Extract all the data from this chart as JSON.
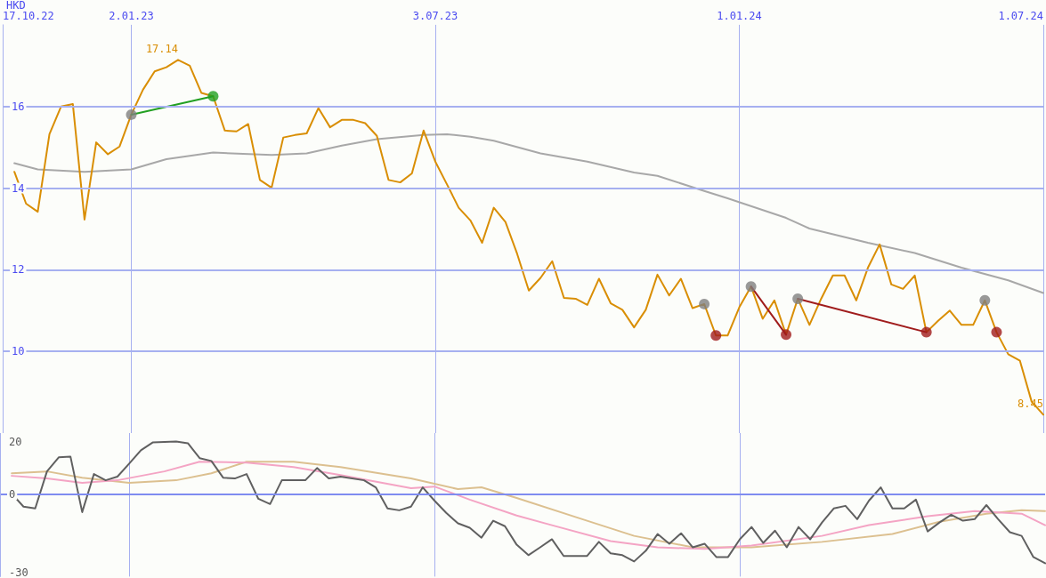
{
  "chart_data": [
    {
      "type": "line",
      "ylabel": "HKD",
      "marker": "none",
      "grid": true,
      "x": [
        "2022-10-24",
        "2022-10-31",
        "2022-11-07",
        "2022-11-14",
        "2022-11-21",
        "2022-11-28",
        "2022-12-05",
        "2022-12-12",
        "2022-12-19",
        "2022-12-26",
        "2023-01-02",
        "2023-01-09",
        "2023-01-16",
        "2023-01-23",
        "2023-01-30",
        "2023-02-06",
        "2023-02-13",
        "2023-02-20",
        "2023-02-27",
        "2023-03-06",
        "2023-03-13",
        "2023-03-20",
        "2023-03-27",
        "2023-04-03",
        "2023-04-10",
        "2023-04-17",
        "2023-04-24",
        "2023-05-01",
        "2023-05-08",
        "2023-05-15",
        "2023-05-22",
        "2023-05-29",
        "2023-06-05",
        "2023-06-12",
        "2023-06-19",
        "2023-06-26",
        "2023-07-03",
        "2023-07-10",
        "2023-07-17",
        "2023-07-24",
        "2023-07-31",
        "2023-08-07",
        "2023-08-14",
        "2023-08-21",
        "2023-08-28",
        "2023-09-04",
        "2023-09-11",
        "2023-09-18",
        "2023-09-25",
        "2023-10-02",
        "2023-10-09",
        "2023-10-16",
        "2023-10-23",
        "2023-10-30",
        "2023-11-06",
        "2023-11-13",
        "2023-11-20",
        "2023-11-27",
        "2023-12-04",
        "2023-12-11",
        "2023-12-18",
        "2023-12-25",
        "2024-01-01",
        "2024-01-08",
        "2024-01-15",
        "2024-01-22",
        "2024-01-29",
        "2024-02-05",
        "2024-02-12",
        "2024-02-19",
        "2024-02-26",
        "2024-03-04",
        "2024-03-11",
        "2024-03-18",
        "2024-03-25",
        "2024-04-01",
        "2024-04-08",
        "2024-04-15",
        "2024-04-22",
        "2024-04-29",
        "2024-05-06",
        "2024-05-13",
        "2024-05-20",
        "2024-05-27",
        "2024-06-03",
        "2024-06-10",
        "2024-06-17",
        "2024-06-24",
        "2024-07-01"
      ],
      "xlim": [
        "2022-10-17",
        "2024-07-01"
      ],
      "xticks": [
        {
          "value": "2022-10-17",
          "label": "17.10.22"
        },
        {
          "value": "2023-01-02",
          "label": "2.01.23"
        },
        {
          "value": "2023-07-03",
          "label": "3.07.23"
        },
        {
          "value": "2024-01-01",
          "label": "1.01.24"
        },
        {
          "value": "2024-07-01",
          "label": "1.07.24"
        }
      ],
      "ylim": [
        8,
        18
      ],
      "yticks": [
        10,
        12,
        14,
        16
      ],
      "series": [
        {
          "color": "#a8a8a8",
          "x": [
            "2022-10-24",
            "2022-11-07",
            "2022-12-05",
            "2023-01-02",
            "2023-01-23",
            "2023-02-20",
            "2023-03-27",
            "2023-04-17",
            "2023-05-08",
            "2023-05-29",
            "2023-06-26",
            "2023-07-10",
            "2023-07-24",
            "2023-08-07",
            "2023-09-04",
            "2023-10-02",
            "2023-10-30",
            "2023-11-13",
            "2023-12-11",
            "2023-12-25",
            "2024-01-29",
            "2024-02-12",
            "2024-03-18",
            "2024-04-15",
            "2024-05-13",
            "2024-06-10",
            "2024-07-01"
          ],
          "values": [
            14.61,
            14.46,
            14.4,
            14.46,
            14.71,
            14.87,
            14.81,
            14.85,
            15.04,
            15.2,
            15.3,
            15.32,
            15.26,
            15.16,
            14.85,
            14.65,
            14.38,
            14.3,
            13.93,
            13.75,
            13.27,
            13.01,
            12.66,
            12.41,
            12.05,
            11.74,
            11.43
          ]
        },
        {
          "color": "#d98e04",
          "values": [
            14.4,
            13.62,
            13.42,
            15.32,
            16.0,
            16.06,
            13.23,
            15.12,
            14.83,
            15.02,
            15.8,
            16.41,
            16.86,
            16.96,
            17.14,
            17.0,
            16.33,
            16.25,
            15.41,
            15.39,
            15.57,
            14.2,
            14.01,
            15.24,
            15.3,
            15.34,
            15.96,
            15.49,
            15.67,
            15.67,
            15.59,
            15.28,
            14.2,
            14.14,
            14.36,
            15.41,
            14.65,
            14.09,
            13.52,
            13.21,
            12.66,
            13.52,
            13.17,
            12.39,
            11.49,
            11.8,
            12.21,
            11.31,
            11.29,
            11.14,
            11.78,
            11.18,
            11.02,
            10.59,
            11.02,
            11.88,
            11.37,
            11.78,
            11.06,
            11.16,
            10.39,
            10.39,
            11.08,
            11.59,
            10.8,
            11.25,
            10.41,
            11.29,
            10.65,
            11.29,
            11.86,
            11.86,
            11.25,
            12.05,
            12.62,
            11.64,
            11.53,
            11.86,
            10.47,
            10.75,
            11.0,
            10.65,
            10.65,
            11.25,
            10.47,
            9.93,
            9.77,
            8.77,
            8.45
          ],
          "value_labels": [
            null,
            null,
            null,
            null,
            null,
            null,
            null,
            null,
            null,
            null,
            null,
            null,
            null,
            null,
            "17.14",
            null,
            null,
            null,
            null,
            null,
            null,
            null,
            null,
            null,
            null,
            null,
            null,
            null,
            null,
            null,
            null,
            null,
            null,
            null,
            null,
            null,
            null,
            null,
            null,
            null,
            null,
            null,
            null,
            null,
            null,
            null,
            null,
            null,
            null,
            null,
            null,
            null,
            null,
            null,
            null,
            null,
            null,
            null,
            null,
            null,
            null,
            null,
            null,
            null,
            null,
            null,
            null,
            null,
            null,
            null,
            null,
            null,
            null,
            null,
            null,
            null,
            null,
            null,
            null,
            null,
            null,
            null,
            null,
            null,
            null,
            null,
            null,
            null,
            "8.45"
          ]
        },
        {
          "color": "#22a022",
          "x": [
            "2023-01-02",
            "2023-02-20"
          ],
          "values": [
            15.8,
            16.25
          ]
        },
        {
          "color": "#a01c1c",
          "x": [
            "2024-01-08",
            "2024-01-29"
          ],
          "values": [
            11.59,
            10.41
          ]
        },
        {
          "color": "#a01c1c",
          "x": [
            "2024-02-05",
            "2024-04-22"
          ],
          "values": [
            11.29,
            10.47
          ]
        },
        {
          "type": "scatter",
          "marker": "circle",
          "color": "#808080",
          "x": [
            "2023-01-02",
            "2023-12-11",
            "2024-01-08",
            "2024-02-05",
            "2024-05-27"
          ],
          "values": [
            15.8,
            11.16,
            11.59,
            11.29,
            11.25
          ]
        },
        {
          "type": "scatter",
          "marker": "circle",
          "color": "#a01c1c",
          "x": [
            "2023-12-18",
            "2024-01-29",
            "2024-04-22",
            "2024-06-03"
          ],
          "values": [
            10.39,
            10.41,
            10.47,
            10.47
          ]
        },
        {
          "type": "scatter",
          "marker": "circle",
          "color": "#22a022",
          "x": [
            "2023-02-20"
          ],
          "values": [
            16.25
          ]
        }
      ]
    },
    {
      "type": "line",
      "marker": "none",
      "grid": "x",
      "tick_labels": "y",
      "x": [
        "2022-10-24",
        "2022-10-31",
        "2022-11-07",
        "2022-11-14",
        "2022-11-21",
        "2022-11-28",
        "2022-12-05",
        "2022-12-12",
        "2022-12-19",
        "2022-12-26",
        "2023-01-02",
        "2023-01-09",
        "2023-01-16",
        "2023-01-30",
        "2023-02-06",
        "2023-02-13",
        "2023-02-20",
        "2023-02-27",
        "2023-03-06",
        "2023-03-13",
        "2023-03-20",
        "2023-03-27",
        "2023-04-03",
        "2023-04-17",
        "2023-04-24",
        "2023-05-01",
        "2023-05-08",
        "2023-05-22",
        "2023-05-29",
        "2023-06-05",
        "2023-06-12",
        "2023-06-19",
        "2023-06-26",
        "2023-07-03",
        "2023-07-10",
        "2023-07-17",
        "2023-07-24",
        "2023-07-31",
        "2023-08-07",
        "2023-08-14",
        "2023-08-21",
        "2023-08-28",
        "2023-09-04",
        "2023-09-11",
        "2023-09-18",
        "2023-09-25",
        "2023-10-02",
        "2023-10-09",
        "2023-10-16",
        "2023-10-23",
        "2023-10-30",
        "2023-11-06",
        "2023-11-13",
        "2023-11-20",
        "2023-11-27",
        "2023-12-04",
        "2023-12-11",
        "2023-12-18",
        "2023-12-25",
        "2024-01-01",
        "2024-01-08",
        "2024-01-15",
        "2024-01-22",
        "2024-01-29",
        "2024-02-05",
        "2024-02-12",
        "2024-02-19",
        "2024-02-26",
        "2024-03-04",
        "2024-03-11",
        "2024-03-18",
        "2024-03-25",
        "2024-04-01",
        "2024-04-08",
        "2024-04-15",
        "2024-04-22",
        "2024-04-29",
        "2024-05-06",
        "2024-05-13",
        "2024-05-20",
        "2024-05-27",
        "2024-06-03",
        "2024-06-10",
        "2024-06-17",
        "2024-06-24",
        "2024-07-01"
      ],
      "xlim": [
        "2022-10-17",
        "2024-07-01"
      ],
      "xticks": [
        {
          "value": "2023-01-02",
          "label": null
        },
        {
          "value": "2023-07-03",
          "label": null
        },
        {
          "value": "2024-01-01",
          "label": null
        }
      ],
      "ylim": [
        -31.5,
        23.5
      ],
      "yticks": [
        20,
        0,
        -30
      ],
      "ref_lines": [
        {
          "axis": "y",
          "value": 0,
          "color": "#7f8cf0"
        }
      ],
      "series": [
        {
          "color": "#dcc090",
          "x": [
            "2022-10-24",
            "2022-11-14",
            "2022-12-05",
            "2023-01-02",
            "2023-01-30",
            "2023-02-20",
            "2023-03-13",
            "2023-04-10",
            "2023-05-08",
            "2023-06-19",
            "2023-07-17",
            "2023-07-31",
            "2023-08-21",
            "2023-10-02",
            "2023-10-30",
            "2023-12-04",
            "2024-01-08",
            "2024-02-19",
            "2024-04-01",
            "2024-04-29",
            "2024-05-27",
            "2024-06-17",
            "2024-07-01"
          ],
          "values": [
            8.1,
            8.8,
            6.4,
            4.4,
            5.4,
            8.1,
            12.5,
            12.5,
            10.5,
            6.1,
            2.0,
            2.7,
            -1.4,
            -10.1,
            -15.9,
            -20.3,
            -20.3,
            -18.2,
            -15.2,
            -10.5,
            -7.4,
            -6.1,
            -6.4
          ]
        },
        {
          "color": "#f4a4c4",
          "x": [
            "2022-10-24",
            "2022-11-14",
            "2022-12-05",
            "2022-12-26",
            "2023-01-23",
            "2023-02-13",
            "2023-03-13",
            "2023-04-10",
            "2023-05-08",
            "2023-06-19",
            "2023-07-03",
            "2023-07-24",
            "2023-08-21",
            "2023-09-11",
            "2023-10-16",
            "2023-11-13",
            "2023-12-11",
            "2024-01-08",
            "2024-02-19",
            "2024-03-18",
            "2024-04-22",
            "2024-05-20",
            "2024-06-17",
            "2024-07-01"
          ],
          "values": [
            7.1,
            6.1,
            4.4,
            5.4,
            8.8,
            12.5,
            12.2,
            10.5,
            7.4,
            2.4,
            3.0,
            -2.0,
            -8.1,
            -11.8,
            -17.9,
            -20.3,
            -20.9,
            -19.6,
            -15.9,
            -11.8,
            -8.4,
            -6.4,
            -7.4,
            -11.8
          ]
        },
        {
          "color": "#606060",
          "values": [
            0.3,
            -4.7,
            -5.4,
            8.8,
            14.2,
            14.5,
            -6.8,
            7.8,
            5.4,
            6.8,
            11.8,
            16.9,
            19.9,
            20.3,
            19.6,
            13.9,
            12.8,
            6.4,
            6.1,
            7.8,
            -1.7,
            -3.7,
            5.4,
            5.4,
            10.1,
            6.1,
            6.8,
            5.4,
            2.7,
            -5.4,
            -6.1,
            -4.7,
            2.7,
            -2.4,
            -7.1,
            -11.1,
            -12.8,
            -16.6,
            -10.1,
            -12.2,
            -19.3,
            -23.3,
            -20.3,
            -17.2,
            -23.6,
            -23.6,
            -23.6,
            -18.2,
            -22.6,
            -23.3,
            -25.7,
            -21.6,
            -15.2,
            -18.9,
            -14.9,
            -20.3,
            -18.9,
            -24.0,
            -24.0,
            -17.2,
            -12.5,
            -18.6,
            -13.9,
            -20.3,
            -12.5,
            -17.2,
            -10.8,
            -5.4,
            -4.4,
            -9.5,
            -2.4,
            2.7,
            -5.4,
            -5.4,
            -2.0,
            -14.2,
            -10.8,
            -7.8,
            -10.1,
            -9.5,
            -4.1,
            -9.5,
            -14.5,
            -15.9,
            -24.0,
            -26.4
          ]
        }
      ]
    }
  ]
}
